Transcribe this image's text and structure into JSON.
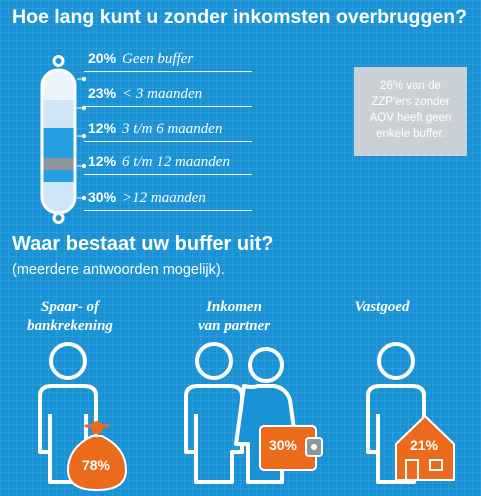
{
  "title": "Hoe lang kunt u zonder inkomsten overbruggen?",
  "note": "26% van de ZZP'ers zonder AOV heeft geen enkele buffer.",
  "buffer_rows": [
    {
      "pct": "20%",
      "label": "Geen buffer"
    },
    {
      "pct": "23%",
      "label": "< 3 maanden"
    },
    {
      "pct": "12%",
      "label": "3 t/m 6 maanden"
    },
    {
      "pct": "12%",
      "label": "6 t/m 12 maanden"
    },
    {
      "pct": "30%",
      "label": ">12 maanden"
    }
  ],
  "section2": {
    "title": "Waar bestaat uw buffer uit?",
    "subtitle": "(meerdere antwoorden mogelijk)."
  },
  "categories": [
    {
      "line1": "Spaar- of",
      "line2": "bankrekening",
      "value": "78%",
      "icon": "money-bag-icon"
    },
    {
      "line1": "Inkomen",
      "line2": "van partner",
      "value": "30%",
      "icon": "wallet-icon"
    },
    {
      "line1": "Vastgoed",
      "line2": "",
      "value": "21%",
      "icon": "house-icon"
    }
  ],
  "colors": {
    "background": "#1a92d6",
    "orange": "#ec6a1c",
    "gray": "#8f969b",
    "light_blue": "#cfe6f7",
    "note_box": "#c9d1d7"
  }
}
